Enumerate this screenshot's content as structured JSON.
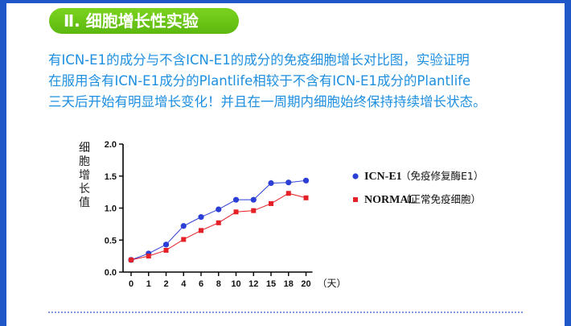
{
  "section": {
    "title": "Ⅱ. 细胞增长性实验"
  },
  "intro": {
    "lines": [
      "有ICN-E1的成分与不含ICN-E1的成分的免疫细胞增长对比图，实验证明",
      "在服用含有ICN-E1成分的Plantlife相较于不含有ICN-E1成分的Plantlife",
      "三天后开始有明显增长变化！并且在一周期内细胞始终保持持续增长状态。"
    ]
  },
  "colors": {
    "accent_green": "#6cc418",
    "text_blue": "#1e8fe0",
    "series_icn": "#2b3fd6",
    "series_normal": "#e52027",
    "frame_blue": "#1f57c9"
  },
  "chart_data": {
    "type": "line",
    "title": "",
    "ylabel": "细胞增长值",
    "xlabel": "（天）",
    "categories": [
      "0",
      "1",
      "2",
      "4",
      "6",
      "8",
      "10",
      "12",
      "15",
      "18",
      "20"
    ],
    "ylim": [
      0,
      2.0
    ],
    "yticks": [
      "0.0",
      "0.5",
      "1.0",
      "1.5",
      "2.0"
    ],
    "grid": false,
    "legend_position": "right",
    "series": [
      {
        "name": "ICN-E1",
        "note": "（免疫修复酶E1）",
        "marker": "circle",
        "color": "#2b3fd6",
        "values": [
          0.19,
          0.29,
          0.43,
          0.72,
          0.86,
          0.98,
          1.13,
          1.13,
          1.39,
          1.4,
          1.43
        ]
      },
      {
        "name": "NORMAL",
        "note": "（正常免疫细胞）",
        "marker": "square",
        "color": "#e52027",
        "values": [
          0.19,
          0.25,
          0.34,
          0.51,
          0.65,
          0.77,
          0.94,
          0.96,
          1.07,
          1.23,
          1.16
        ]
      }
    ]
  }
}
